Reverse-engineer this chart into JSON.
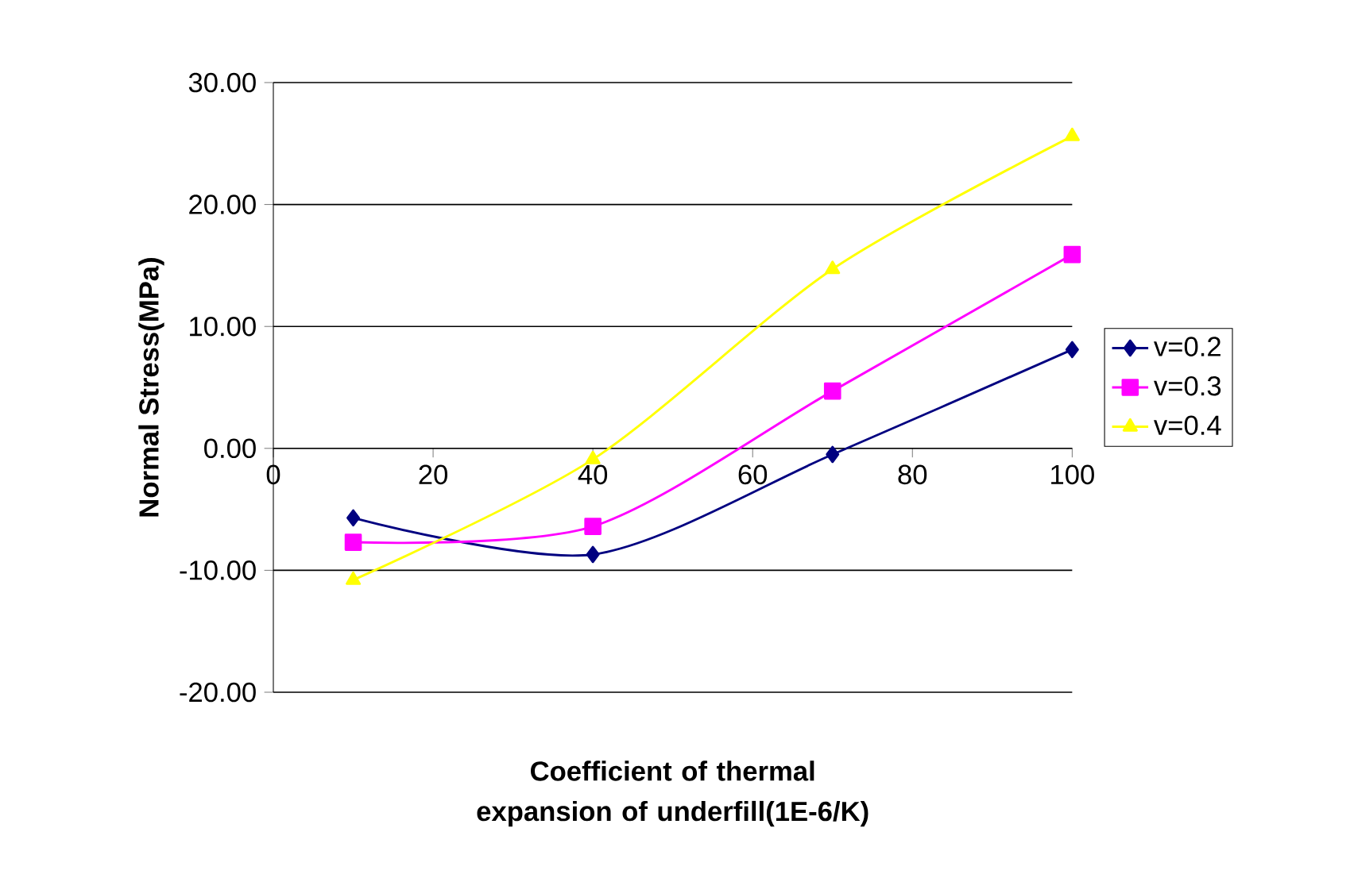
{
  "chart_data": {
    "type": "line",
    "xlabel": "Coefficient of thermal expansion of underfill(1E-6/K)",
    "ylabel": "Normal Stress(MPa)",
    "x": [
      10,
      40,
      70,
      100
    ],
    "series": [
      {
        "name": "v=0.2",
        "color": "#000080",
        "marker": "diamond",
        "values": [
          -5.7,
          -8.7,
          -0.5,
          8.1
        ]
      },
      {
        "name": "v=0.3",
        "color": "#ff00ff",
        "marker": "square",
        "values": [
          -7.7,
          -6.4,
          4.7,
          15.9
        ]
      },
      {
        "name": "v=0.4",
        "color": "#ffff00",
        "marker": "triangle",
        "values": [
          -10.8,
          -0.9,
          14.7,
          25.6
        ]
      }
    ],
    "xlim": [
      0,
      100
    ],
    "xticks": [
      0,
      20,
      40,
      60,
      80,
      100
    ],
    "ylim": [
      -20,
      30
    ],
    "yticks": [
      {
        "value": -20,
        "label": "-20.00"
      },
      {
        "value": -10,
        "label": "-10.00"
      },
      {
        "value": 0,
        "label": "0.00"
      },
      {
        "value": 10,
        "label": "10.00"
      },
      {
        "value": 20,
        "label": "20.00"
      },
      {
        "value": 30,
        "label": "30.00"
      }
    ],
    "grid": "y",
    "legend": "right",
    "line_style": "solid"
  }
}
